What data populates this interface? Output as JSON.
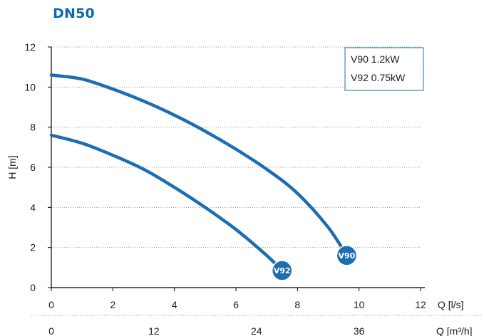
{
  "title": "DN50",
  "colors": {
    "title": "#0a6aad",
    "curve": "#1d6db2",
    "grid": "#9a9a9a",
    "axis": "#000000"
  },
  "chart_data": {
    "type": "line",
    "xlabel": "Q [l/s]",
    "ylabel": "H [m]",
    "xlim": [
      0,
      12
    ],
    "ylim": [
      0,
      12
    ],
    "x_ticks": [
      "0",
      "2",
      "4",
      "6",
      "8",
      "10",
      "12"
    ],
    "y_ticks": [
      "0",
      "2",
      "4",
      "6",
      "8",
      "10",
      "12"
    ],
    "secondary_x_axis": {
      "label": "Q [m³/h]",
      "ticks": [
        {
          "at": 0,
          "label": "0"
        },
        {
          "at": 3.333,
          "label": "12"
        },
        {
          "at": 6.667,
          "label": "24"
        },
        {
          "at": 10,
          "label": "36"
        }
      ]
    },
    "grid": "horizontal-dotted",
    "legend": {
      "placement": "top-right",
      "entries": [
        "V90 1.2kW",
        "V92 0.75kW"
      ]
    },
    "series": [
      {
        "name": "V90",
        "x": [
          0,
          1,
          2,
          3,
          4,
          5,
          6,
          7,
          8,
          9,
          9.6
        ],
        "y": [
          10.6,
          10.4,
          9.9,
          9.3,
          8.6,
          7.8,
          6.9,
          5.9,
          4.7,
          3.0,
          1.6
        ]
      },
      {
        "name": "V92",
        "x": [
          0,
          1,
          2,
          3,
          4,
          5,
          6,
          7,
          7.5
        ],
        "y": [
          7.6,
          7.2,
          6.6,
          5.9,
          5.0,
          4.0,
          2.9,
          1.6,
          0.85
        ]
      }
    ]
  }
}
